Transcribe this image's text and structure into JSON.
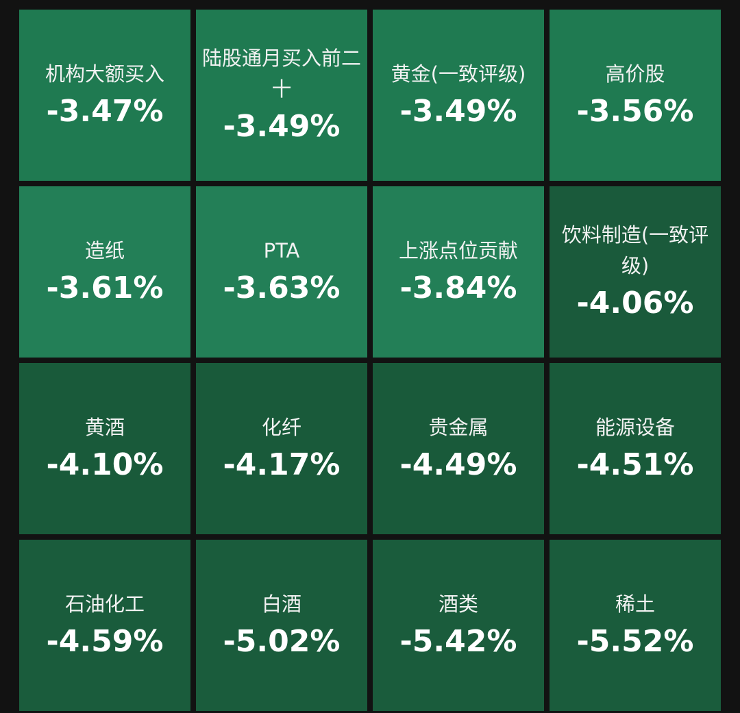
{
  "tiles": [
    {
      "name": "机构大额买入",
      "change": "-3.47%",
      "color": "#1f7a51"
    },
    {
      "name": "陆股通月买入前二十",
      "change": "-3.49%",
      "color": "#1f7a51"
    },
    {
      "name": "黄金(一致评级)",
      "change": "-3.49%",
      "color": "#1f7a51"
    },
    {
      "name": "高价股",
      "change": "-3.56%",
      "color": "#1f7a51"
    },
    {
      "name": "造纸",
      "change": "-3.61%",
      "color": "#237f57"
    },
    {
      "name": "PTA",
      "change": "-3.63%",
      "color": "#237f57"
    },
    {
      "name": "上涨点位贡献",
      "change": "-3.84%",
      "color": "#237f57"
    },
    {
      "name": "饮料制造(一致评级)",
      "change": "-4.06%",
      "color": "#1a5a3b"
    },
    {
      "name": "黄酒",
      "change": "-4.10%",
      "color": "#195a3a"
    },
    {
      "name": "化纤",
      "change": "-4.17%",
      "color": "#195a3a"
    },
    {
      "name": "贵金属",
      "change": "-4.49%",
      "color": "#195a3a"
    },
    {
      "name": "能源设备",
      "change": "-4.51%",
      "color": "#195a3a"
    },
    {
      "name": "石油化工",
      "change": "-4.59%",
      "color": "#1a5c3c"
    },
    {
      "name": "白酒",
      "change": "-5.02%",
      "color": "#1a5c3c"
    },
    {
      "name": "酒类",
      "change": "-5.42%",
      "color": "#1a5c3c"
    },
    {
      "name": "稀土",
      "change": "-5.52%",
      "color": "#1a5c3c"
    }
  ]
}
